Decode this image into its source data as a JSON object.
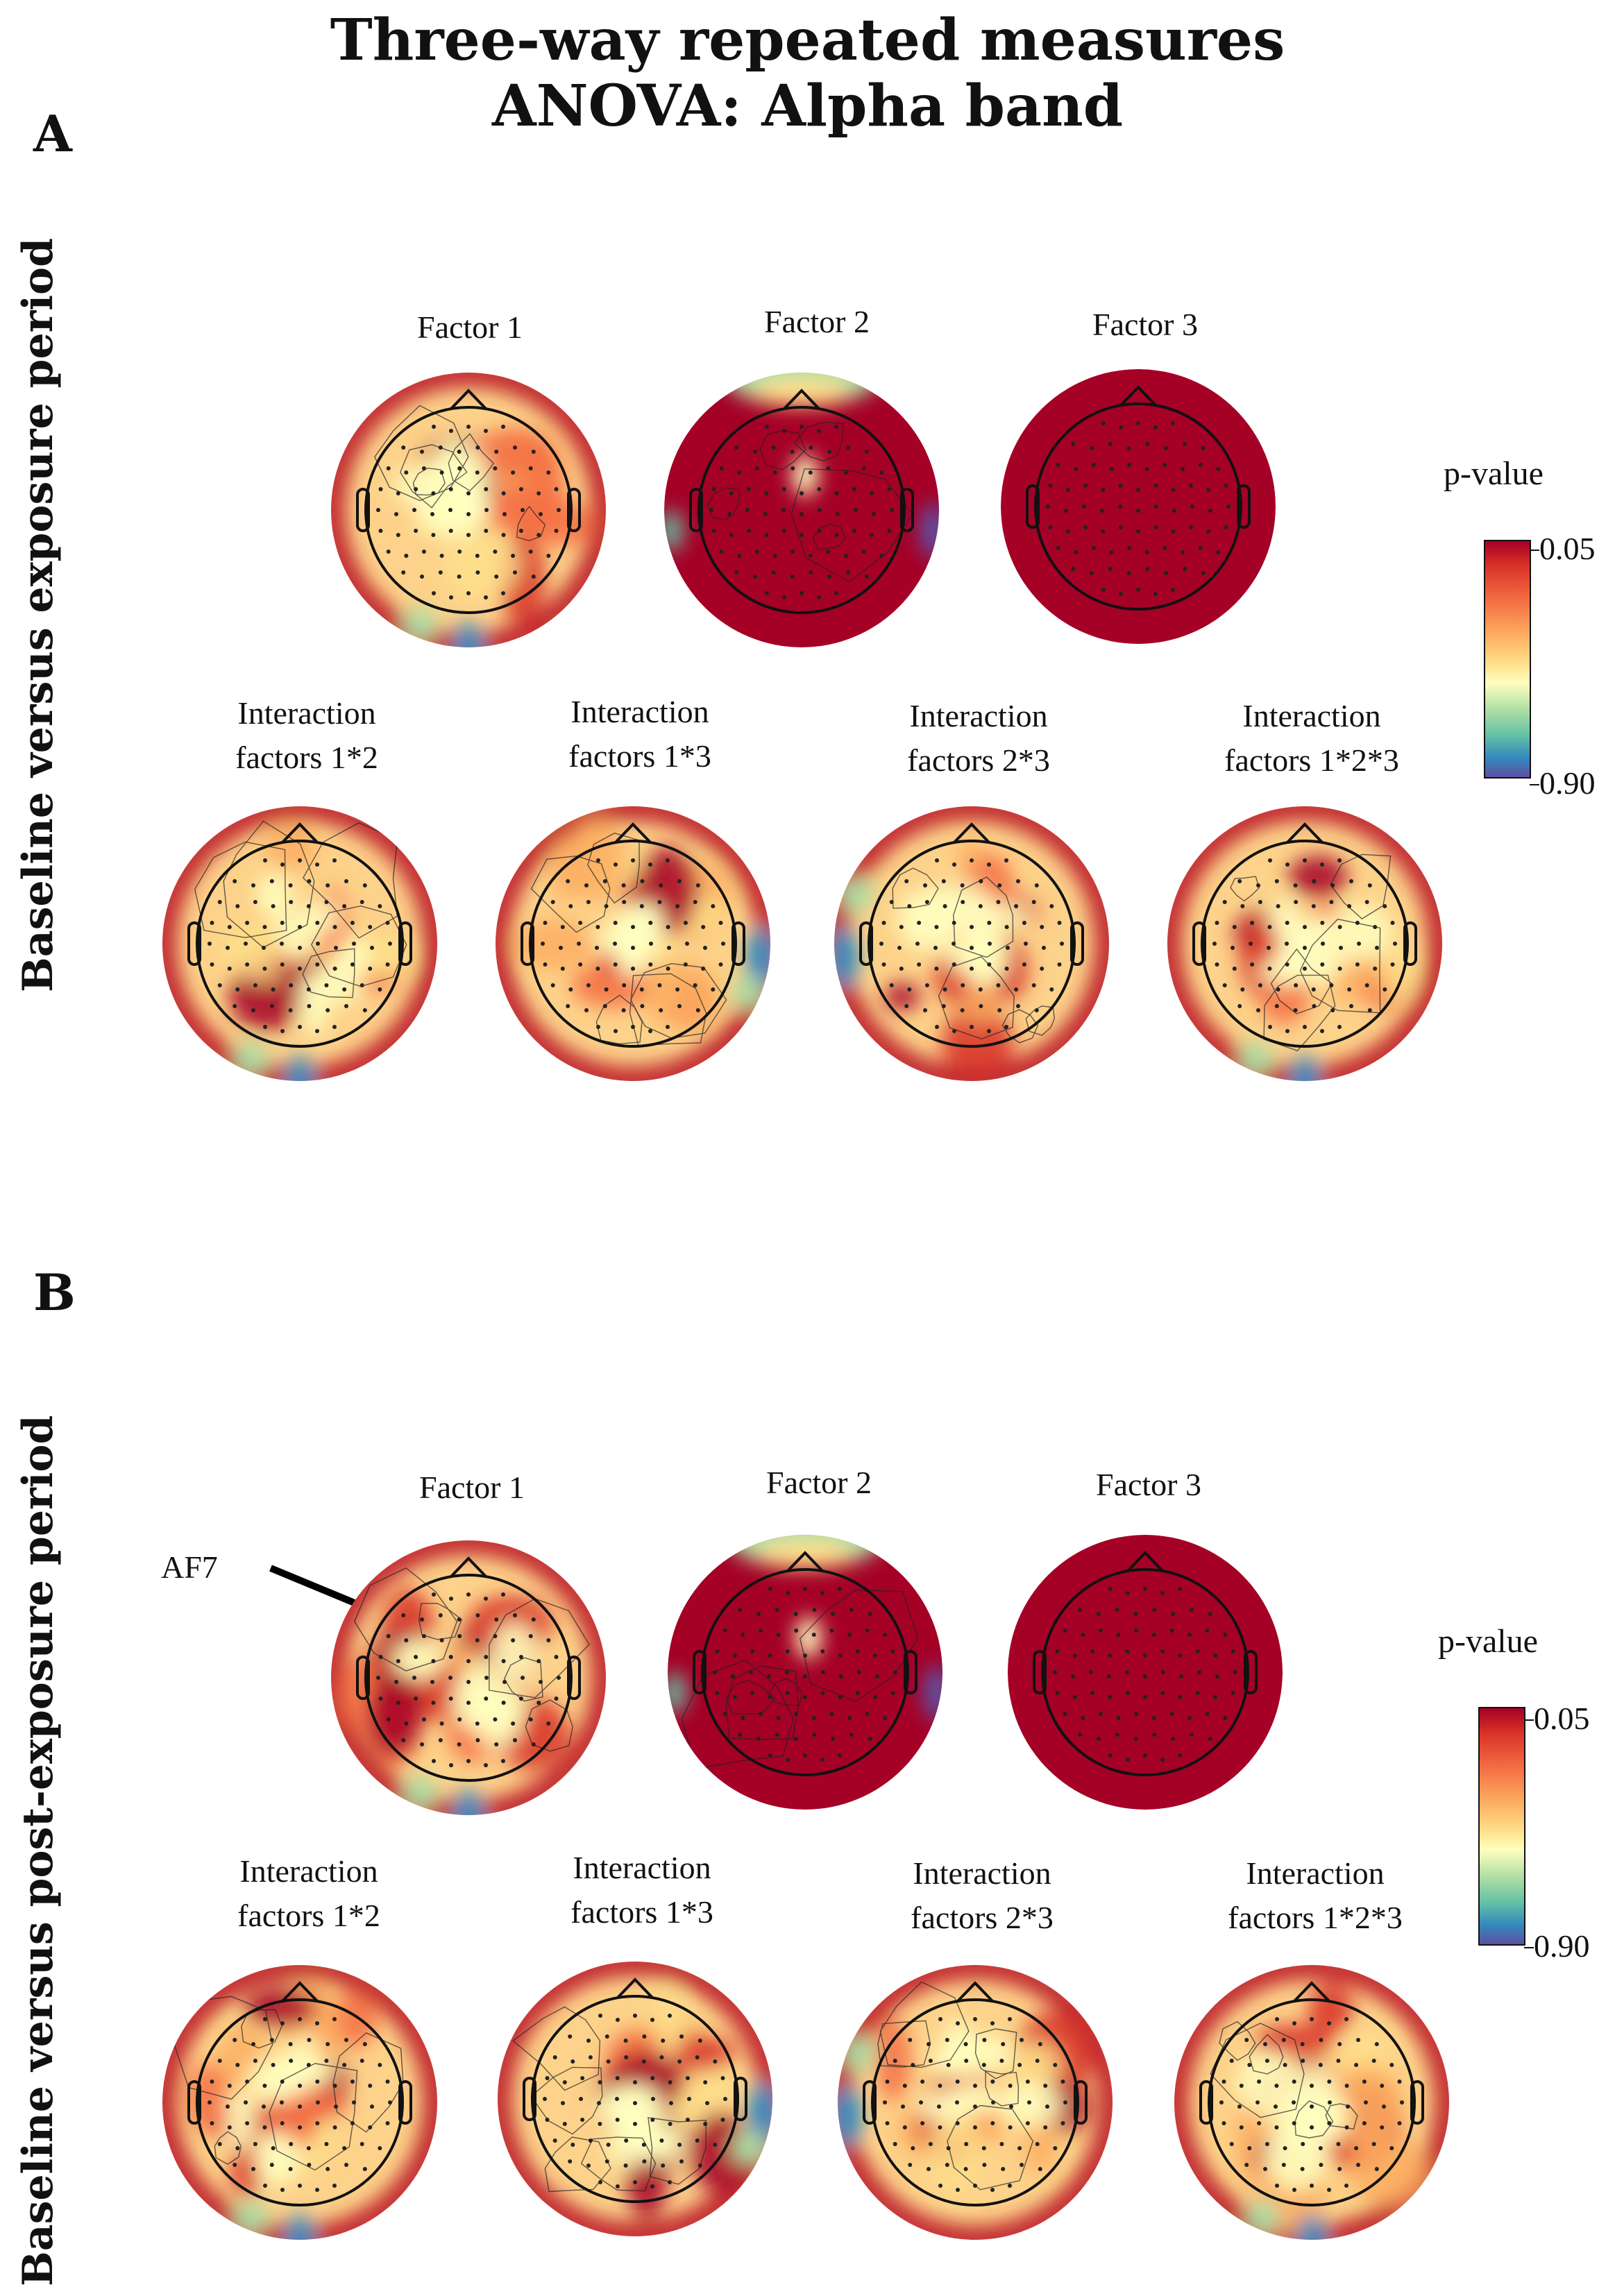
{
  "title_line1": "Three-way repeated measures",
  "title_line2": "ANOVA: Alpha band",
  "panel_a": {
    "letter": "A",
    "row_label": "Baseline versus exposure period",
    "colorbar": {
      "title": "p-value",
      "top": "0.05",
      "bottom": "0.90"
    },
    "maps": [
      {
        "line1": "Factor 1",
        "line2": ""
      },
      {
        "line1": "Factor 2",
        "line2": ""
      },
      {
        "line1": "Factor 3",
        "line2": ""
      },
      {
        "line1": "Interaction",
        "line2": "factors 1*2"
      },
      {
        "line1": "Interaction",
        "line2": "factors 1*3"
      },
      {
        "line1": "Interaction",
        "line2": "factors 2*3"
      },
      {
        "line1": "Interaction",
        "line2": "factors 1*2*3"
      }
    ]
  },
  "panel_b": {
    "letter": "B",
    "row_label": "Baseline versus post-exposure period",
    "annotation": "AF7",
    "colorbar": {
      "title": "p-value",
      "top": "0.05",
      "bottom": "0.90"
    },
    "maps": [
      {
        "line1": "Factor 1",
        "line2": ""
      },
      {
        "line1": "Factor 2",
        "line2": ""
      },
      {
        "line1": "Factor 3",
        "line2": ""
      },
      {
        "line1": "Interaction",
        "line2": "factors 1*2"
      },
      {
        "line1": "Interaction",
        "line2": "factors 1*3"
      },
      {
        "line1": "Interaction",
        "line2": "factors 2*3"
      },
      {
        "line1": "Interaction",
        "line2": "factors 1*2*3"
      }
    ]
  },
  "chart_data": {
    "type": "heatmap",
    "subtype": "topographic scalp maps",
    "colorscale": {
      "label": "p-value",
      "min": 0.05,
      "max": 0.9,
      "colors": [
        "#a50026",
        "#f46d43",
        "#fee08b",
        "#ffffbf",
        "#abdda4",
        "#66c2a5",
        "#3288bd",
        "#5e4fa2"
      ]
    },
    "panels": [
      {
        "panel": "A",
        "maps": [
          "Factor 1",
          "Factor 2",
          "Factor 3",
          "Interaction factors 1*2",
          "Interaction factors 1*3",
          "Interaction factors 2*3",
          "Interaction factors 1*2*3"
        ]
      },
      {
        "panel": "B",
        "maps": [
          "Factor 1",
          "Factor 2",
          "Factor 3",
          "Interaction factors 1*2",
          "Interaction factors 1*3",
          "Interaction factors 2*3",
          "Interaction factors 1*2*3"
        ]
      }
    ]
  }
}
